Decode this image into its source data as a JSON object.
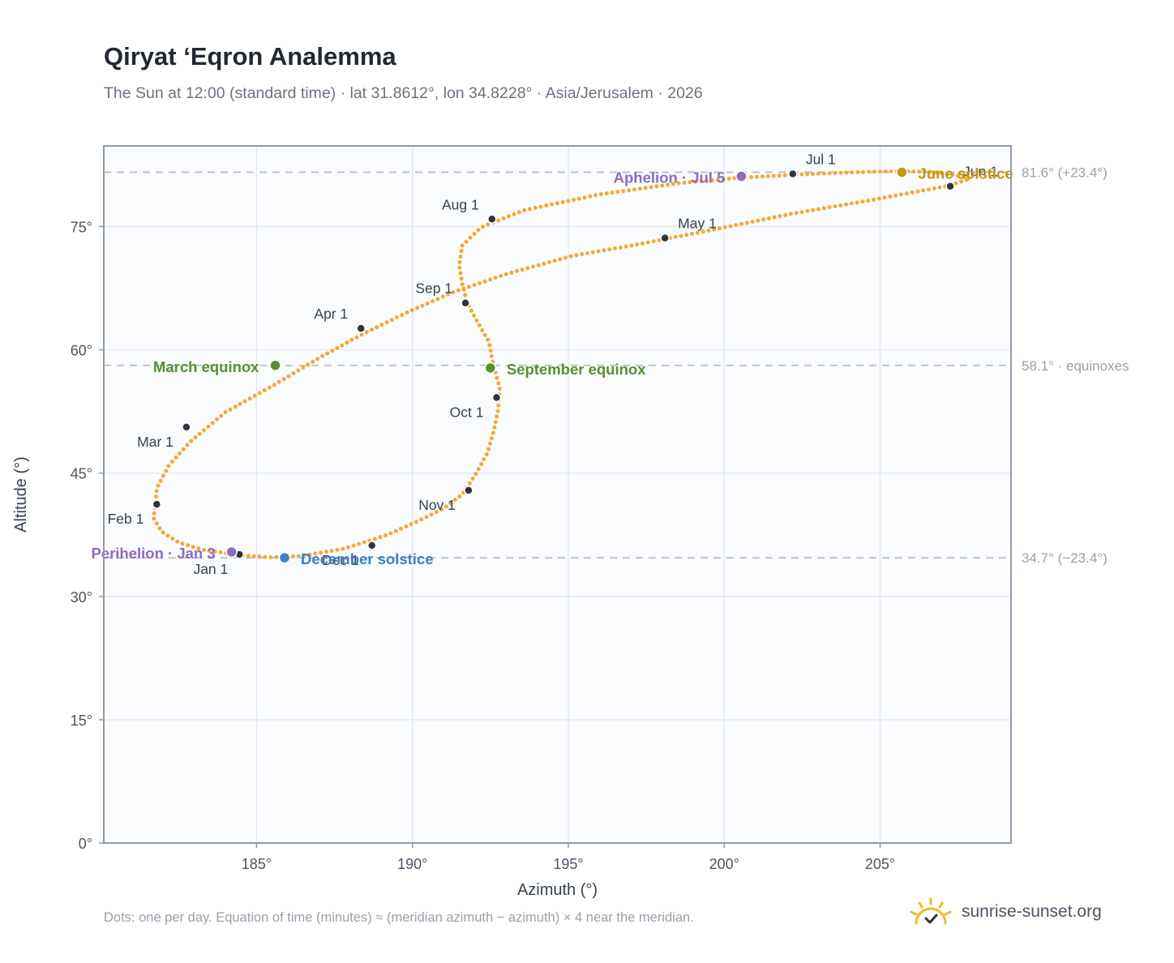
{
  "title": "Qiryat ‘Eqron Analemma",
  "subtitle": "The Sun at 12:00 (standard time) · lat 31.8612°, lon 34.8228° · Asia/Jerusalem · 2026",
  "footnote": "Dots: one per day. Equation of time (minutes) ≈ (meridian azimuth − azimuth) × 4 near the meridian.",
  "brand": {
    "text": "sunrise-sunset.org",
    "icon": "sun-logo-icon",
    "color": "#f3b92c"
  },
  "colors": {
    "curve": "#f2a93b",
    "month_dot": "#2f343c",
    "equinox": "#5a8f2e",
    "solstice_june": "#c8960c",
    "solstice_dec": "#3f7fc5",
    "apsis": "#8e6bbf",
    "plot_bg": "#f9fbfd",
    "grid": "#e5e9ef",
    "border": "#8f9aaa",
    "ref_line": "#b8bec8"
  },
  "chart_data": {
    "type": "scatter",
    "xlabel": "Azimuth (°)",
    "ylabel": "Altitude (°)",
    "xlim": [
      180.1,
      209.2
    ],
    "ylim": [
      0,
      84.8
    ],
    "xticks": [
      185,
      190,
      195,
      200,
      205
    ],
    "xtick_labels": [
      "185°",
      "190°",
      "195°",
      "200°",
      "205°"
    ],
    "yticks": [
      0,
      15,
      30,
      45,
      60,
      75
    ],
    "ytick_labels": [
      "0°",
      "15°",
      "30°",
      "45°",
      "60°",
      "75°"
    ],
    "grid": true,
    "reference_lines": [
      {
        "y": 81.6,
        "label": "81.6° (+23.4°)"
      },
      {
        "y": 58.1,
        "label": "58.1° · equinoxes"
      },
      {
        "y": 34.7,
        "label": "34.7° (−23.4°)"
      }
    ],
    "series_name": "",
    "path": [
      [
        184.2,
        35.15
      ],
      [
        183.3,
        35.65
      ],
      [
        182.5,
        36.55
      ],
      [
        181.95,
        37.9
      ],
      [
        181.7,
        39.5
      ],
      [
        181.75,
        41.0
      ],
      [
        181.8,
        43.2
      ],
      [
        182.2,
        46.0
      ],
      [
        182.9,
        48.9
      ],
      [
        184.0,
        52.4
      ],
      [
        185.6,
        55.8
      ],
      [
        187.0,
        59.0
      ],
      [
        188.35,
        61.8
      ],
      [
        189.8,
        64.5
      ],
      [
        191.3,
        67.0
      ],
      [
        193.0,
        69.2
      ],
      [
        195.1,
        71.4
      ],
      [
        197.2,
        72.8
      ],
      [
        199.5,
        74.5
      ],
      [
        202.1,
        76.5
      ],
      [
        204.7,
        78.2
      ],
      [
        206.4,
        79.4
      ],
      [
        207.2,
        79.95
      ],
      [
        207.9,
        80.85
      ],
      [
        207.4,
        81.25
      ],
      [
        206.6,
        81.65
      ],
      [
        205.6,
        81.72
      ],
      [
        204.4,
        81.62
      ],
      [
        202.7,
        81.38
      ],
      [
        200.5,
        80.92
      ],
      [
        198.5,
        80.25
      ],
      [
        196.0,
        78.9
      ],
      [
        193.6,
        77.0
      ],
      [
        192.2,
        74.9
      ],
      [
        191.6,
        72.7
      ],
      [
        191.5,
        70.3
      ],
      [
        191.6,
        68.0
      ],
      [
        191.75,
        65.8
      ],
      [
        192.05,
        63.6
      ],
      [
        192.45,
        61.0
      ],
      [
        192.6,
        58.1
      ],
      [
        192.8,
        55.4
      ],
      [
        192.75,
        52.7
      ],
      [
        192.6,
        50.0
      ],
      [
        192.4,
        47.4
      ],
      [
        192.0,
        44.7
      ],
      [
        191.6,
        42.4
      ],
      [
        191.0,
        40.7
      ],
      [
        190.2,
        39.2
      ],
      [
        189.2,
        37.5
      ],
      [
        187.8,
        35.8
      ],
      [
        186.4,
        34.9
      ],
      [
        185.4,
        34.75
      ],
      [
        184.7,
        34.95
      ],
      [
        184.2,
        35.15
      ]
    ],
    "month_points": [
      {
        "label": "Jan 1",
        "az": 184.45,
        "alt": 35.1
      },
      {
        "label": "Feb 1",
        "az": 181.8,
        "alt": 41.2
      },
      {
        "label": "Mar 1",
        "az": 182.75,
        "alt": 50.6
      },
      {
        "label": "Apr 1",
        "az": 188.35,
        "alt": 62.6
      },
      {
        "label": "May 1",
        "az": 198.1,
        "alt": 73.6
      },
      {
        "label": "Jun 1",
        "az": 207.25,
        "alt": 79.9
      },
      {
        "label": "Jul 1",
        "az": 202.2,
        "alt": 81.4
      },
      {
        "label": "Aug 1",
        "az": 192.55,
        "alt": 75.9
      },
      {
        "label": "Sep 1",
        "az": 191.7,
        "alt": 65.7
      },
      {
        "label": "Oct 1",
        "az": 192.7,
        "alt": 54.2
      },
      {
        "label": "Nov 1",
        "az": 191.8,
        "alt": 42.9
      },
      {
        "label": "Dec 1",
        "az": 188.7,
        "alt": 36.2
      }
    ],
    "events": [
      {
        "label": "March equinox",
        "az": 185.6,
        "alt": 58.1,
        "kind": "equinox"
      },
      {
        "label": "September equinox",
        "az": 192.5,
        "alt": 57.8,
        "kind": "equinox"
      },
      {
        "label": "June solstice",
        "az": 205.7,
        "alt": 81.6,
        "kind": "solstice_june"
      },
      {
        "label": "December solstice",
        "az": 185.9,
        "alt": 34.7,
        "kind": "solstice_dec"
      },
      {
        "label": "Perihelion · Jan 3",
        "az": 184.2,
        "alt": 35.4,
        "kind": "apsis"
      },
      {
        "label": "Aphelion · Jul 5",
        "az": 200.55,
        "alt": 81.1,
        "kind": "apsis"
      }
    ]
  }
}
